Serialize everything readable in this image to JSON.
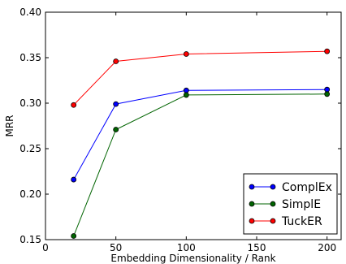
{
  "chart_data": {
    "type": "line",
    "xlabel": "Embedding Dimensionality / Rank",
    "ylabel": "MRR",
    "xlim": [
      0,
      210
    ],
    "ylim": [
      0.15,
      0.4
    ],
    "xticks": [
      0,
      50,
      100,
      150,
      200
    ],
    "yticks": [
      0.15,
      0.2,
      0.25,
      0.3,
      0.35,
      0.4
    ],
    "x_tick_labels": [
      "0",
      "50",
      "100",
      "150",
      "200"
    ],
    "y_tick_labels": [
      "0.15",
      "0.20",
      "0.25",
      "0.30",
      "0.35",
      "0.40"
    ],
    "grid": false,
    "legend_position": "lower-right",
    "x": [
      20,
      50,
      100,
      200
    ],
    "series": [
      {
        "name": "ComplEx",
        "color": "#0000ff",
        "values": [
          0.216,
          0.299,
          0.314,
          0.315
        ]
      },
      {
        "name": "SimplE",
        "color": "#006400",
        "values": [
          0.154,
          0.271,
          0.309,
          0.31
        ]
      },
      {
        "name": "TuckER",
        "color": "#ff0000",
        "values": [
          0.298,
          0.346,
          0.354,
          0.357
        ]
      }
    ]
  }
}
